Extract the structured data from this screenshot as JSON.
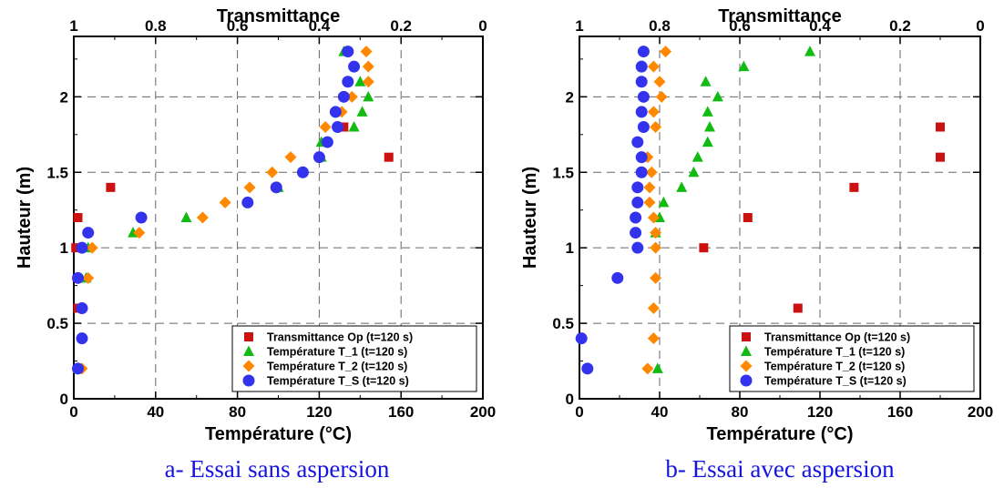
{
  "chart_data": [
    {
      "type": "scatter",
      "caption": "a- Essai sans aspersion",
      "top_axis": {
        "label": "Transmittance",
        "range": [
          1,
          0
        ],
        "ticks": [
          "1",
          "0.8",
          "0.6",
          "0.4",
          "0.2",
          "0"
        ]
      },
      "xlabel": "Température (°C)",
      "xlim": [
        0,
        200
      ],
      "xticks": [
        "0",
        "40",
        "80",
        "120",
        "160",
        "200"
      ],
      "ylabel": "Hauteur (m)",
      "ylim": [
        0,
        2.4
      ],
      "yticks": [
        "0",
        "0.5",
        "1",
        "1.5",
        "2"
      ],
      "grid": true,
      "legend_position": "bottom-right",
      "series": [
        {
          "name": "Transmittance Op (t=120 s)",
          "marker": "square",
          "color": "#cc1111",
          "axis": "top",
          "points": [
            [
              0.99,
              0.6
            ],
            [
              0.995,
              1.0
            ],
            [
              0.99,
              1.2
            ],
            [
              0.91,
              1.4
            ],
            [
              0.23,
              1.6
            ],
            [
              0.34,
              1.8
            ]
          ]
        },
        {
          "name": "Température T_1 (t=120 s)",
          "marker": "triangle",
          "color": "#11bb11",
          "axis": "bottom",
          "points": [
            [
              2,
              0.2
            ],
            [
              6,
              0.8
            ],
            [
              7,
              1.0
            ],
            [
              29,
              1.1
            ],
            [
              55,
              1.2
            ],
            [
              100,
              1.4
            ],
            [
              121,
              1.6
            ],
            [
              121,
              1.7
            ],
            [
              137,
              1.8
            ],
            [
              141,
              1.9
            ],
            [
              144,
              2.0
            ],
            [
              140,
              2.1
            ],
            [
              132,
              2.3
            ]
          ]
        },
        {
          "name": "Température T_2 (t=120 s)",
          "marker": "diamond",
          "color": "#ff8800",
          "axis": "bottom",
          "points": [
            [
              4,
              0.2
            ],
            [
              7,
              0.8
            ],
            [
              9,
              1.0
            ],
            [
              32,
              1.1
            ],
            [
              63,
              1.2
            ],
            [
              74,
              1.3
            ],
            [
              86,
              1.4
            ],
            [
              97,
              1.5
            ],
            [
              106,
              1.6
            ],
            [
              123,
              1.8
            ],
            [
              131,
              1.9
            ],
            [
              136,
              2.0
            ],
            [
              144,
              2.1
            ],
            [
              144,
              2.2
            ],
            [
              143,
              2.3
            ]
          ]
        },
        {
          "name": "Température T_S (t=120 s)",
          "marker": "circle",
          "color": "#3333ee",
          "axis": "bottom",
          "points": [
            [
              2,
              0.2
            ],
            [
              4,
              0.4
            ],
            [
              4,
              0.6
            ],
            [
              2,
              0.8
            ],
            [
              4,
              1.0
            ],
            [
              7,
              1.1
            ],
            [
              33,
              1.2
            ],
            [
              85,
              1.3
            ],
            [
              99,
              1.4
            ],
            [
              112,
              1.5
            ],
            [
              120,
              1.6
            ],
            [
              124,
              1.7
            ],
            [
              129,
              1.8
            ],
            [
              128,
              1.9
            ],
            [
              132,
              2.0
            ],
            [
              134,
              2.1
            ],
            [
              137,
              2.2
            ],
            [
              134,
              2.3
            ]
          ]
        }
      ]
    },
    {
      "type": "scatter",
      "caption": "b- Essai avec aspersion",
      "top_axis": {
        "label": "Transmittance",
        "range": [
          1,
          0
        ],
        "ticks": [
          "1",
          "0.8",
          "0.6",
          "0.4",
          "0.2",
          "0"
        ]
      },
      "xlabel": "Température (°C)",
      "xlim": [
        0,
        200
      ],
      "xticks": [
        "0",
        "40",
        "80",
        "120",
        "160",
        "200"
      ],
      "ylabel": "Hauteur (m)",
      "ylim": [
        0,
        2.4
      ],
      "yticks": [
        "0",
        "0.5",
        "1",
        "1.5",
        "2"
      ],
      "grid": true,
      "legend_position": "bottom-right",
      "series": [
        {
          "name": "Transmittance Op (t=120 s)",
          "marker": "square",
          "color": "#cc1111",
          "axis": "top",
          "points": [
            [
              0.455,
              0.6
            ],
            [
              0.69,
              1.0
            ],
            [
              0.58,
              1.2
            ],
            [
              0.315,
              1.4
            ],
            [
              0.1,
              1.6
            ],
            [
              0.1,
              1.8
            ]
          ]
        },
        {
          "name": "Température T_1 (t=120 s)",
          "marker": "triangle",
          "color": "#11bb11",
          "axis": "bottom",
          "points": [
            [
              39,
              0.2
            ],
            [
              38,
              1.1
            ],
            [
              40,
              1.2
            ],
            [
              42,
              1.3
            ],
            [
              51,
              1.4
            ],
            [
              57,
              1.5
            ],
            [
              59,
              1.6
            ],
            [
              64,
              1.7
            ],
            [
              65,
              1.8
            ],
            [
              64,
              1.9
            ],
            [
              69,
              2.0
            ],
            [
              63,
              2.1
            ],
            [
              82,
              2.2
            ],
            [
              115,
              2.3
            ]
          ]
        },
        {
          "name": "Température T_2 (t=120 s)",
          "marker": "diamond",
          "color": "#ff8800",
          "axis": "bottom",
          "points": [
            [
              34,
              0.2
            ],
            [
              37,
              0.4
            ],
            [
              37,
              0.6
            ],
            [
              38,
              0.8
            ],
            [
              38,
              1.0
            ],
            [
              38,
              1.1
            ],
            [
              37,
              1.2
            ],
            [
              35,
              1.3
            ],
            [
              35,
              1.4
            ],
            [
              36,
              1.5
            ],
            [
              34,
              1.6
            ],
            [
              38,
              1.8
            ],
            [
              37,
              1.9
            ],
            [
              41,
              2.0
            ],
            [
              40,
              2.1
            ],
            [
              37,
              2.2
            ],
            [
              43,
              2.3
            ]
          ]
        },
        {
          "name": "Température T_S (t=120 s)",
          "marker": "circle",
          "color": "#3333ee",
          "axis": "bottom",
          "points": [
            [
              4,
              0.2
            ],
            [
              1,
              0.4
            ],
            [
              19,
              0.8
            ],
            [
              29,
              1.0
            ],
            [
              28,
              1.1
            ],
            [
              28,
              1.2
            ],
            [
              29,
              1.3
            ],
            [
              29,
              1.4
            ],
            [
              31,
              1.5
            ],
            [
              31,
              1.6
            ],
            [
              29,
              1.7
            ],
            [
              32,
              1.8
            ],
            [
              31,
              1.9
            ],
            [
              32,
              2.0
            ],
            [
              31,
              2.1
            ],
            [
              31,
              2.2
            ],
            [
              32,
              2.3
            ]
          ]
        }
      ]
    }
  ]
}
